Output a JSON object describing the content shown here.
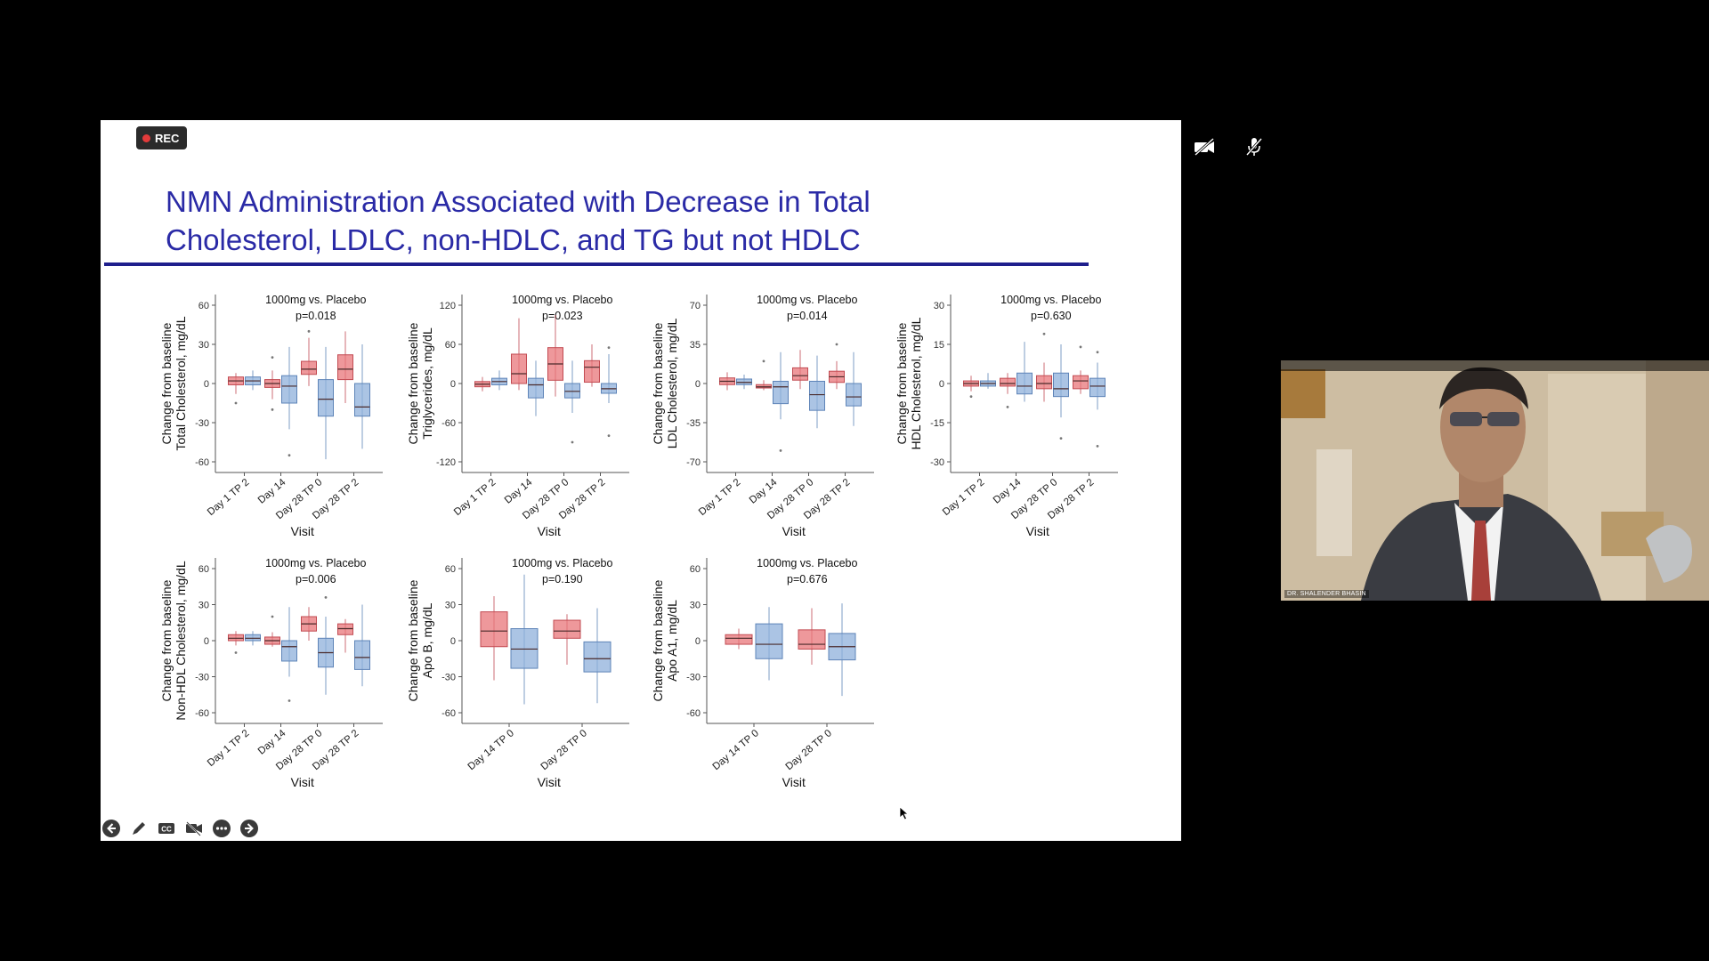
{
  "recording": {
    "label": "REC",
    "color": "#e33b3b"
  },
  "slide": {
    "title_line1": "NMN Administration Associated with Decrease in Total",
    "title_line2": "Cholesterol,  LDLC, non-HDLC, and TG but not HDLC",
    "title_color": "#2a2aa6",
    "rule_color": "#1e1e8c"
  },
  "video_tile": {
    "participant_name": "DR. SHALENDER BHASIN"
  },
  "toolbar": {
    "icons": [
      "back-arrow-icon",
      "pen-icon",
      "closed-captions-icon",
      "video-camera-off-icon",
      "more-options-icon",
      "forward-arrow-icon"
    ]
  },
  "top_icons": [
    "video-off-icon",
    "mic-muted-icon"
  ],
  "colors": {
    "treatment": "#e8767a",
    "placebo": "#8fb0db"
  },
  "chart_data": [
    {
      "type": "box",
      "ylabel": "Change from baseline\nTotal Cholesterol, mg/dL",
      "xlabel": "Visit",
      "annotation": "1000mg vs. Placebo",
      "pvalue": "p=0.018",
      "yticks": [
        60,
        30,
        0,
        -30,
        -60
      ],
      "ylim": [
        -60,
        60
      ],
      "categories": [
        "Day 1 TP 2",
        "Day 14",
        "Day 28 TP 0",
        "Day 28 TP 2"
      ],
      "boxes": [
        {
          "cat": 0,
          "group": "treatment",
          "min": -8,
          "q1": -1,
          "med": 2,
          "q3": 5,
          "max": 8,
          "outliers": [
            -15
          ]
        },
        {
          "cat": 0,
          "group": "placebo",
          "min": -5,
          "q1": -1,
          "med": 2,
          "q3": 5,
          "max": 10,
          "outliers": []
        },
        {
          "cat": 1,
          "group": "treatment",
          "min": -12,
          "q1": -3,
          "med": 0,
          "q3": 3,
          "max": 10,
          "outliers": [
            20,
            -20
          ]
        },
        {
          "cat": 1,
          "group": "placebo",
          "min": -35,
          "q1": -15,
          "med": -2,
          "q3": 6,
          "max": 28,
          "outliers": [
            -55
          ]
        },
        {
          "cat": 2,
          "group": "treatment",
          "min": -2,
          "q1": 7,
          "med": 11,
          "q3": 17,
          "max": 35,
          "outliers": [
            40
          ]
        },
        {
          "cat": 2,
          "group": "placebo",
          "min": -58,
          "q1": -25,
          "med": -12,
          "q3": 3,
          "max": 28,
          "outliers": []
        },
        {
          "cat": 3,
          "group": "treatment",
          "min": -15,
          "q1": 3,
          "med": 11,
          "q3": 22,
          "max": 40,
          "outliers": []
        },
        {
          "cat": 3,
          "group": "placebo",
          "min": -50,
          "q1": -25,
          "med": -18,
          "q3": 0,
          "max": 30,
          "outliers": []
        }
      ]
    },
    {
      "type": "box",
      "ylabel": "Change from baseline\nTriglycerides, mg/dL",
      "xlabel": "Visit",
      "annotation": "1000mg vs. Placebo",
      "pvalue": "p=0.023",
      "yticks": [
        120,
        60,
        0,
        -60,
        -120
      ],
      "ylim": [
        -120,
        120
      ],
      "categories": [
        "Day 1 TP 2",
        "Day 14",
        "Day 28 TP 0",
        "Day 28 TP 2"
      ],
      "boxes": [
        {
          "cat": 0,
          "group": "treatment",
          "min": -12,
          "q1": -5,
          "med": -1,
          "q3": 3,
          "max": 10,
          "outliers": []
        },
        {
          "cat": 0,
          "group": "placebo",
          "min": -10,
          "q1": -2,
          "med": 3,
          "q3": 8,
          "max": 20,
          "outliers": []
        },
        {
          "cat": 1,
          "group": "treatment",
          "min": -10,
          "q1": 0,
          "med": 15,
          "q3": 45,
          "max": 100,
          "outliers": []
        },
        {
          "cat": 1,
          "group": "placebo",
          "min": -50,
          "q1": -22,
          "med": -2,
          "q3": 8,
          "max": 35,
          "outliers": []
        },
        {
          "cat": 2,
          "group": "treatment",
          "min": -20,
          "q1": 5,
          "med": 30,
          "q3": 55,
          "max": 105,
          "outliers": []
        },
        {
          "cat": 2,
          "group": "placebo",
          "min": -45,
          "q1": -22,
          "med": -12,
          "q3": 0,
          "max": 35,
          "outliers": [
            -90
          ]
        },
        {
          "cat": 3,
          "group": "treatment",
          "min": -5,
          "q1": 2,
          "med": 25,
          "q3": 35,
          "max": 60,
          "outliers": []
        },
        {
          "cat": 3,
          "group": "placebo",
          "min": -30,
          "q1": -15,
          "med": -8,
          "q3": 0,
          "max": 45,
          "outliers": [
            -80,
            55
          ]
        }
      ]
    },
    {
      "type": "box",
      "ylabel": "Change from baseline\nLDL Cholesterol, mg/dL",
      "xlabel": "Visit",
      "annotation": "1000mg vs. Placebo",
      "pvalue": "p=0.014",
      "yticks": [
        70,
        35,
        0,
        -35,
        -70
      ],
      "ylim": [
        -70,
        70
      ],
      "categories": [
        "Day 1 TP 2",
        "Day 14",
        "Day 28 TP 0",
        "Day 28 TP 2"
      ],
      "boxes": [
        {
          "cat": 0,
          "group": "treatment",
          "min": -6,
          "q1": -1,
          "med": 2,
          "q3": 5,
          "max": 10,
          "outliers": []
        },
        {
          "cat": 0,
          "group": "placebo",
          "min": -5,
          "q1": -1,
          "med": 1,
          "q3": 4,
          "max": 8,
          "outliers": []
        },
        {
          "cat": 1,
          "group": "treatment",
          "min": -6,
          "q1": -4,
          "med": -3,
          "q3": -1,
          "max": 3,
          "outliers": [
            20
          ]
        },
        {
          "cat": 1,
          "group": "placebo",
          "min": -32,
          "q1": -18,
          "med": -3,
          "q3": 2,
          "max": 28,
          "outliers": [
            -60
          ]
        },
        {
          "cat": 2,
          "group": "treatment",
          "min": -5,
          "q1": 3,
          "med": 7,
          "q3": 14,
          "max": 30,
          "outliers": []
        },
        {
          "cat": 2,
          "group": "placebo",
          "min": -40,
          "q1": -24,
          "med": -10,
          "q3": 2,
          "max": 25,
          "outliers": []
        },
        {
          "cat": 3,
          "group": "treatment",
          "min": -5,
          "q1": 1,
          "med": 6,
          "q3": 11,
          "max": 20,
          "outliers": [
            35
          ]
        },
        {
          "cat": 3,
          "group": "placebo",
          "min": -38,
          "q1": -20,
          "med": -12,
          "q3": 0,
          "max": 28,
          "outliers": []
        }
      ]
    },
    {
      "type": "box",
      "ylabel": "Change from baseline\nHDL Cholesterol, mg/dL",
      "xlabel": "Visit",
      "annotation": "1000mg vs. Placebo",
      "pvalue": "p=0.630",
      "yticks": [
        30,
        15,
        0,
        -15,
        -30
      ],
      "ylim": [
        -30,
        30
      ],
      "categories": [
        "Day 1 TP 2",
        "Day 14",
        "Day 28 TP 0",
        "Day 28 TP 2"
      ],
      "boxes": [
        {
          "cat": 0,
          "group": "treatment",
          "min": -3,
          "q1": -1,
          "med": 0,
          "q3": 1,
          "max": 3,
          "outliers": [
            -5
          ]
        },
        {
          "cat": 0,
          "group": "placebo",
          "min": -2,
          "q1": -1,
          "med": 0,
          "q3": 1,
          "max": 4,
          "outliers": []
        },
        {
          "cat": 1,
          "group": "treatment",
          "min": -4,
          "q1": -1,
          "med": 0,
          "q3": 2,
          "max": 4,
          "outliers": [
            -9
          ]
        },
        {
          "cat": 1,
          "group": "placebo",
          "min": -7,
          "q1": -4,
          "med": -1,
          "q3": 4,
          "max": 16,
          "outliers": []
        },
        {
          "cat": 2,
          "group": "treatment",
          "min": -7,
          "q1": -2,
          "med": 0,
          "q3": 3,
          "max": 8,
          "outliers": [
            19
          ]
        },
        {
          "cat": 2,
          "group": "placebo",
          "min": -13,
          "q1": -5,
          "med": -2,
          "q3": 4,
          "max": 15,
          "outliers": [
            -21
          ]
        },
        {
          "cat": 3,
          "group": "treatment",
          "min": -4,
          "q1": -2,
          "med": 1,
          "q3": 3,
          "max": 5,
          "outliers": [
            14
          ]
        },
        {
          "cat": 3,
          "group": "placebo",
          "min": -10,
          "q1": -5,
          "med": -1,
          "q3": 2,
          "max": 8,
          "outliers": [
            -24,
            12
          ]
        }
      ]
    },
    {
      "type": "box",
      "ylabel": "Change from baseline\nNon-HDL Cholesterol, mg/dL",
      "xlabel": "Visit",
      "annotation": "1000mg vs. Placebo",
      "pvalue": "p=0.006",
      "yticks": [
        60,
        30,
        0,
        -30,
        -60
      ],
      "ylim": [
        -60,
        60
      ],
      "categories": [
        "Day 1 TP 2",
        "Day 14",
        "Day 28 TP 0",
        "Day 28 TP 2"
      ],
      "boxes": [
        {
          "cat": 0,
          "group": "treatment",
          "min": -4,
          "q1": 0,
          "med": 2,
          "q3": 5,
          "max": 8,
          "outliers": [
            -10
          ]
        },
        {
          "cat": 0,
          "group": "placebo",
          "min": -4,
          "q1": 0,
          "med": 2,
          "q3": 5,
          "max": 8,
          "outliers": []
        },
        {
          "cat": 1,
          "group": "treatment",
          "min": -5,
          "q1": -3,
          "med": 0,
          "q3": 3,
          "max": 7,
          "outliers": [
            20
          ]
        },
        {
          "cat": 1,
          "group": "placebo",
          "min": -30,
          "q1": -17,
          "med": -5,
          "q3": 0,
          "max": 28,
          "outliers": [
            -50
          ]
        },
        {
          "cat": 2,
          "group": "treatment",
          "min": 0,
          "q1": 8,
          "med": 14,
          "q3": 20,
          "max": 28,
          "outliers": []
        },
        {
          "cat": 2,
          "group": "placebo",
          "min": -45,
          "q1": -22,
          "med": -10,
          "q3": 2,
          "max": 20,
          "outliers": [
            36
          ]
        },
        {
          "cat": 3,
          "group": "treatment",
          "min": -10,
          "q1": 5,
          "med": 10,
          "q3": 14,
          "max": 18,
          "outliers": []
        },
        {
          "cat": 3,
          "group": "placebo",
          "min": -38,
          "q1": -24,
          "med": -14,
          "q3": 0,
          "max": 30,
          "outliers": []
        }
      ]
    },
    {
      "type": "box",
      "ylabel": "Change from baseline\nApo B, mg/dL",
      "xlabel": "Visit",
      "annotation": "1000mg vs. Placebo",
      "pvalue": "p=0.190",
      "yticks": [
        60,
        30,
        0,
        -30,
        -60
      ],
      "ylim": [
        -60,
        60
      ],
      "categories": [
        "Day 14 TP 0",
        "Day 28 TP 0"
      ],
      "boxes": [
        {
          "cat": 0,
          "group": "treatment",
          "min": -33,
          "q1": -5,
          "med": 8,
          "q3": 24,
          "max": 37,
          "outliers": []
        },
        {
          "cat": 0,
          "group": "placebo",
          "min": -53,
          "q1": -23,
          "med": -7,
          "q3": 10,
          "max": 55,
          "outliers": []
        },
        {
          "cat": 1,
          "group": "treatment",
          "min": -20,
          "q1": 2,
          "med": 8,
          "q3": 17,
          "max": 22,
          "outliers": []
        },
        {
          "cat": 1,
          "group": "placebo",
          "min": -52,
          "q1": -26,
          "med": -15,
          "q3": -1,
          "max": 27,
          "outliers": []
        }
      ]
    },
    {
      "type": "box",
      "ylabel": "Change from baseline\nApo A1, mg/dL",
      "xlabel": "Visit",
      "annotation": "1000mg vs. Placebo",
      "pvalue": "p=0.676",
      "yticks": [
        60,
        30,
        0,
        -30,
        -60
      ],
      "ylim": [
        -60,
        60
      ],
      "categories": [
        "Day 14 TP 0",
        "Day 28 TP 0"
      ],
      "boxes": [
        {
          "cat": 0,
          "group": "treatment",
          "min": -7,
          "q1": -3,
          "med": 2,
          "q3": 5,
          "max": 10,
          "outliers": []
        },
        {
          "cat": 0,
          "group": "placebo",
          "min": -33,
          "q1": -15,
          "med": -3,
          "q3": 14,
          "max": 28,
          "outliers": []
        },
        {
          "cat": 1,
          "group": "treatment",
          "min": -20,
          "q1": -7,
          "med": -3,
          "q3": 9,
          "max": 27,
          "outliers": []
        },
        {
          "cat": 1,
          "group": "placebo",
          "min": -46,
          "q1": -16,
          "med": -5,
          "q3": 6,
          "max": 31,
          "outliers": []
        }
      ]
    }
  ]
}
